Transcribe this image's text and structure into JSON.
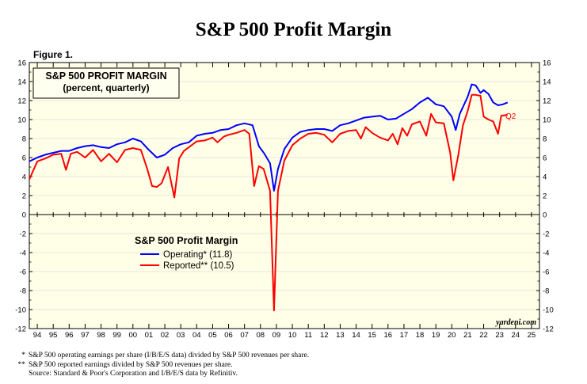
{
  "page": {
    "title": "S&P 500 Profit Margin",
    "figure_label": "Figure 1."
  },
  "colors": {
    "background": "#ffffe8",
    "operating": "#0000ff",
    "reported": "#ff0000"
  },
  "chart_data": {
    "type": "line",
    "title": "S&P 500 PROFIT MARGIN",
    "subtitle": "(percent, quarterly)",
    "source_tag": "yardeni.com",
    "end_label": "Q2",
    "xlim": [
      1993.5,
      2025.5
    ],
    "ylim": [
      -12,
      16
    ],
    "y_ticks": [
      16,
      14,
      12,
      10,
      8,
      6,
      4,
      2,
      0,
      -2,
      -4,
      -6,
      -8,
      -10,
      -12
    ],
    "x_tick_labels": [
      "94",
      "95",
      "96",
      "97",
      "98",
      "99",
      "00",
      "01",
      "02",
      "03",
      "04",
      "05",
      "06",
      "07",
      "08",
      "09",
      "10",
      "11",
      "12",
      "13",
      "14",
      "15",
      "16",
      "17",
      "18",
      "19",
      "20",
      "21",
      "22",
      "23",
      "24",
      "25"
    ],
    "x_tick_years": [
      1994,
      1995,
      1996,
      1997,
      1998,
      1999,
      2000,
      2001,
      2002,
      2003,
      2004,
      2005,
      2006,
      2007,
      2008,
      2009,
      2010,
      2011,
      2012,
      2013,
      2014,
      2015,
      2016,
      2017,
      2018,
      2019,
      2020,
      2021,
      2022,
      2023,
      2024,
      2025
    ],
    "legend": {
      "title": "S&P 500 Profit Margin",
      "position": "center-left",
      "entries": [
        "Operating* (11.8)",
        "Reported** (10.5)"
      ]
    },
    "series": [
      {
        "name": "Operating",
        "color": "#0000ff",
        "points": [
          [
            1993.5,
            5.6
          ],
          [
            1994.0,
            6.0
          ],
          [
            1994.5,
            6.3
          ],
          [
            1995.0,
            6.5
          ],
          [
            1995.5,
            6.7
          ],
          [
            1996.0,
            6.7
          ],
          [
            1996.5,
            7.0
          ],
          [
            1997.0,
            7.2
          ],
          [
            1997.5,
            7.3
          ],
          [
            1998.0,
            7.1
          ],
          [
            1998.5,
            7.0
          ],
          [
            1999.0,
            7.4
          ],
          [
            1999.5,
            7.6
          ],
          [
            2000.0,
            8.0
          ],
          [
            2000.5,
            7.7
          ],
          [
            2001.0,
            6.8
          ],
          [
            2001.5,
            6.0
          ],
          [
            2002.0,
            6.3
          ],
          [
            2002.5,
            7.0
          ],
          [
            2003.0,
            7.4
          ],
          [
            2003.5,
            7.6
          ],
          [
            2004.0,
            8.3
          ],
          [
            2004.5,
            8.5
          ],
          [
            2005.0,
            8.6
          ],
          [
            2005.5,
            8.9
          ],
          [
            2006.0,
            9.0
          ],
          [
            2006.5,
            9.4
          ],
          [
            2007.0,
            9.6
          ],
          [
            2007.5,
            9.4
          ],
          [
            2007.9,
            7.2
          ],
          [
            2008.25,
            6.4
          ],
          [
            2008.6,
            5.4
          ],
          [
            2008.85,
            2.5
          ],
          [
            2009.1,
            4.8
          ],
          [
            2009.5,
            6.9
          ],
          [
            2010.0,
            8.1
          ],
          [
            2010.5,
            8.7
          ],
          [
            2011.0,
            8.9
          ],
          [
            2011.5,
            9.0
          ],
          [
            2012.0,
            9.0
          ],
          [
            2012.5,
            8.8
          ],
          [
            2013.0,
            9.4
          ],
          [
            2013.5,
            9.6
          ],
          [
            2014.0,
            9.9
          ],
          [
            2014.5,
            10.2
          ],
          [
            2015.0,
            10.3
          ],
          [
            2015.5,
            10.4
          ],
          [
            2016.0,
            10.0
          ],
          [
            2016.5,
            10.1
          ],
          [
            2017.0,
            10.6
          ],
          [
            2017.5,
            11.1
          ],
          [
            2018.0,
            11.8
          ],
          [
            2018.5,
            12.3
          ],
          [
            2019.0,
            11.6
          ],
          [
            2019.5,
            11.4
          ],
          [
            2020.0,
            10.3
          ],
          [
            2020.25,
            8.9
          ],
          [
            2020.5,
            10.6
          ],
          [
            2021.0,
            12.4
          ],
          [
            2021.25,
            13.7
          ],
          [
            2021.5,
            13.6
          ],
          [
            2021.8,
            12.8
          ],
          [
            2022.0,
            13.1
          ],
          [
            2022.3,
            12.7
          ],
          [
            2022.6,
            11.8
          ],
          [
            2022.9,
            11.5
          ],
          [
            2023.2,
            11.6
          ],
          [
            2023.5,
            11.8
          ]
        ]
      },
      {
        "name": "Reported",
        "color": "#ff0000",
        "points": [
          [
            1993.5,
            3.7
          ],
          [
            1994.0,
            5.6
          ],
          [
            1994.5,
            5.9
          ],
          [
            1995.0,
            6.3
          ],
          [
            1995.5,
            6.4
          ],
          [
            1995.8,
            4.7
          ],
          [
            1996.1,
            6.4
          ],
          [
            1996.5,
            6.6
          ],
          [
            1997.0,
            6.0
          ],
          [
            1997.5,
            6.8
          ],
          [
            1998.0,
            5.6
          ],
          [
            1998.5,
            6.4
          ],
          [
            1999.0,
            5.5
          ],
          [
            1999.5,
            6.8
          ],
          [
            2000.0,
            7.0
          ],
          [
            2000.5,
            6.8
          ],
          [
            2000.9,
            4.8
          ],
          [
            2001.2,
            3.0
          ],
          [
            2001.5,
            2.9
          ],
          [
            2001.8,
            3.3
          ],
          [
            2002.2,
            5.0
          ],
          [
            2002.6,
            1.8
          ],
          [
            2002.9,
            5.9
          ],
          [
            2003.2,
            6.7
          ],
          [
            2003.6,
            7.2
          ],
          [
            2004.0,
            7.7
          ],
          [
            2004.5,
            7.8
          ],
          [
            2005.0,
            8.1
          ],
          [
            2005.3,
            7.6
          ],
          [
            2005.7,
            8.2
          ],
          [
            2006.0,
            8.4
          ],
          [
            2006.5,
            8.6
          ],
          [
            2007.0,
            8.9
          ],
          [
            2007.3,
            8.5
          ],
          [
            2007.6,
            3.0
          ],
          [
            2007.9,
            5.1
          ],
          [
            2008.2,
            4.8
          ],
          [
            2008.6,
            2.5
          ],
          [
            2008.85,
            -10.1
          ],
          [
            2009.1,
            2.5
          ],
          [
            2009.5,
            5.7
          ],
          [
            2010.0,
            7.3
          ],
          [
            2010.5,
            8.0
          ],
          [
            2011.0,
            8.5
          ],
          [
            2011.5,
            8.6
          ],
          [
            2012.0,
            8.4
          ],
          [
            2012.5,
            7.6
          ],
          [
            2013.0,
            8.5
          ],
          [
            2013.5,
            8.8
          ],
          [
            2014.0,
            8.9
          ],
          [
            2014.3,
            8.0
          ],
          [
            2014.6,
            9.2
          ],
          [
            2015.0,
            8.6
          ],
          [
            2015.5,
            8.1
          ],
          [
            2016.0,
            7.8
          ],
          [
            2016.3,
            8.5
          ],
          [
            2016.6,
            7.4
          ],
          [
            2016.9,
            9.1
          ],
          [
            2017.2,
            8.3
          ],
          [
            2017.5,
            9.5
          ],
          [
            2018.0,
            9.8
          ],
          [
            2018.4,
            8.3
          ],
          [
            2018.7,
            10.6
          ],
          [
            2019.0,
            9.7
          ],
          [
            2019.5,
            9.6
          ],
          [
            2019.9,
            6.5
          ],
          [
            2020.1,
            3.6
          ],
          [
            2020.4,
            6.2
          ],
          [
            2020.7,
            9.4
          ],
          [
            2021.0,
            10.9
          ],
          [
            2021.25,
            12.6
          ],
          [
            2021.5,
            12.6
          ],
          [
            2021.8,
            12.5
          ],
          [
            2022.0,
            10.3
          ],
          [
            2022.3,
            10.0
          ],
          [
            2022.6,
            9.8
          ],
          [
            2022.9,
            8.5
          ],
          [
            2023.1,
            10.4
          ],
          [
            2023.5,
            10.5
          ]
        ]
      }
    ]
  },
  "footnotes": [
    {
      "mark": "*",
      "text": "S&P 500 operating earnings per share (I/B/E/S data) divided by S&P 500 revenues per share."
    },
    {
      "mark": "**",
      "text": "S&P 500 reported earnings divided by S&P 500 revenues per share."
    },
    {
      "mark": "",
      "text": "Source: Standard & Poor's Corporation and I/B/E/S data by Refinitiv."
    }
  ]
}
